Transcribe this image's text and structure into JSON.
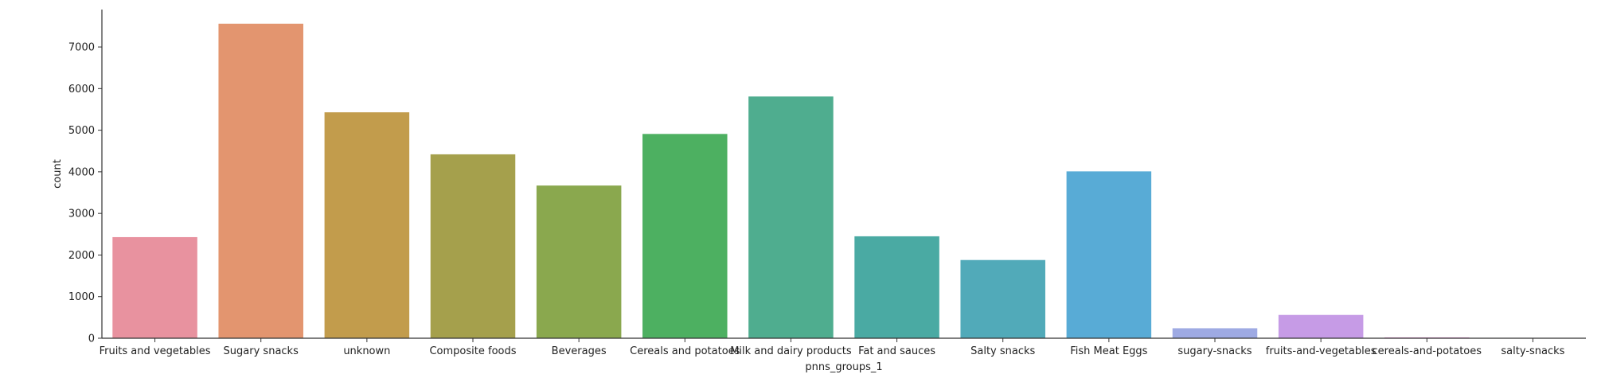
{
  "chart_data": {
    "type": "bar",
    "title": "",
    "xlabel": "pnns_groups_1",
    "ylabel": "count",
    "categories": [
      "Fruits and vegetables",
      "Sugary snacks",
      "unknown",
      "Composite foods",
      "Beverages",
      "Cereals and potatoes",
      "Milk and dairy products",
      "Fat and sauces",
      "Salty snacks",
      "Fish Meat Eggs",
      "sugary-snacks",
      "fruits-and-vegetables",
      "cereals-and-potatoes",
      "salty-snacks"
    ],
    "values": [
      2430,
      7560,
      5430,
      4420,
      3670,
      4910,
      5810,
      2450,
      1880,
      4010,
      240,
      560,
      20,
      5
    ],
    "colors": [
      "#e8929f",
      "#e3956f",
      "#c29c4c",
      "#a5a04c",
      "#8aa84e",
      "#4db061",
      "#4fad8f",
      "#4aaaa3",
      "#51aab9",
      "#58abd6",
      "#9eaae3",
      "#c69be6",
      "#e58fd1",
      "#e593b0"
    ],
    "yticks": [
      0,
      1000,
      2000,
      3000,
      4000,
      5000,
      6000,
      7000
    ],
    "ylim": [
      0,
      7900
    ],
    "grid": false,
    "legend": "none"
  }
}
